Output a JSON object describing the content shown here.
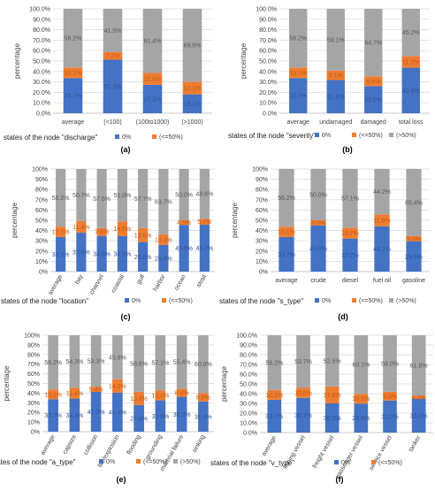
{
  "colors": {
    "zero": "#4472C4",
    "le50": "#ED7D31",
    "gt50": "#A5A5A5",
    "grid": "#D9D9D9"
  },
  "legend": {
    "zero": "0%",
    "le50": "(<=50%)",
    "gt50": "(>50%)"
  },
  "chart_data": [
    {
      "type": "bar",
      "stacked": true,
      "panel_label": "(a)",
      "ylabel": "percentage",
      "xlabel": "states of the node \"discharge\"",
      "ylim": [
        0,
        100
      ],
      "yticks": [
        "0.0%",
        "10.0%",
        "20.0%",
        "30.0%",
        "40.0%",
        "50.0%",
        "60.0%",
        "70.0%",
        "80.0%",
        "90.0%",
        "100.0%"
      ],
      "legend_items": [
        "zero",
        "le50"
      ],
      "rotated": false,
      "categories": [
        "average",
        "(<100)",
        "(100to1000)",
        "(>1000)"
      ],
      "series": [
        {
          "key": "zero",
          "values": [
            33.7,
            51.3,
            27.2,
            18.1
          ],
          "labels": [
            "33.7%",
            "51.3%",
            "27.2%",
            "18.1%"
          ]
        },
        {
          "key": "le50",
          "values": [
            10.1,
            7.2,
            11.4,
            12.1
          ],
          "labels": [
            "10.1%",
            "7.2%",
            "11.4%",
            "12.1%"
          ]
        },
        {
          "key": "gt50",
          "values": [
            56.2,
            41.5,
            61.4,
            69.8
          ],
          "labels": [
            "56.2%",
            "41.5%",
            "61.4%",
            "69.8%"
          ]
        }
      ]
    },
    {
      "type": "bar",
      "stacked": true,
      "panel_label": "(b)",
      "ylabel": "percentage",
      "xlabel": "states of the node \"severity\"",
      "ylim": [
        0,
        100
      ],
      "yticks": [
        "0.0%",
        "10.0%",
        "20.0%",
        "30.0%",
        "40.0%",
        "50.0%",
        "60.0%",
        "70.0%",
        "80.0%",
        "90.0%",
        "100.0%"
      ],
      "legend_items": [
        "zero",
        "le50",
        "gt50"
      ],
      "rotated": false,
      "categories": [
        "average",
        "undamaged",
        "damaged",
        "total loss"
      ],
      "series": [
        {
          "key": "zero",
          "values": [
            33.7,
            31.8,
            25.9,
            43.6
          ],
          "labels": [
            "33.7%",
            "31.8%",
            "25.9%",
            "43.6%"
          ]
        },
        {
          "key": "le50",
          "values": [
            10.1,
            9.1,
            9.4,
            11.2
          ],
          "labels": [
            "10.1%",
            "9.1%",
            "9.4%",
            "11.2%"
          ]
        },
        {
          "key": "gt50",
          "values": [
            56.2,
            59.1,
            64.7,
            45.2
          ],
          "labels": [
            "56.2%",
            "59.1%",
            "64.7%",
            "45.2%"
          ]
        }
      ]
    },
    {
      "type": "bar",
      "stacked": true,
      "panel_label": "(c)",
      "ylabel": "percentage",
      "xlabel": "states of the node \"location\"",
      "ylim": [
        0,
        100
      ],
      "yticks": [
        "0%",
        "10%",
        "20%",
        "30%",
        "40%",
        "50%",
        "60%",
        "70%",
        "80%",
        "90%",
        "100%"
      ],
      "legend_items": [
        "zero",
        "le50"
      ],
      "rotated": true,
      "categories": [
        "average",
        "bay",
        "channel",
        "coastal",
        "gulf",
        "harbor",
        "ocean",
        "strait"
      ],
      "series": [
        {
          "key": "zero",
          "values": [
            33.7,
            37.9,
            34.8,
            34.5,
            28.8,
            25.9,
            45.5,
            45.7
          ],
          "labels": [
            "33.7%",
            "37.9%",
            "34.8%",
            "34.5%",
            "28.8%",
            "25.9%",
            "45.5%",
            "45.7%"
          ]
        },
        {
          "key": "le50",
          "values": [
            10.1,
            11.4,
            7.6,
            14.5,
            13.5,
            10.4,
            4.5,
            5.7
          ],
          "labels": [
            "10.1%",
            "11.4%",
            "7.6%",
            "14.5%",
            "13.5%",
            "10.4%",
            "4.5%",
            "5.7%"
          ]
        },
        {
          "key": "gt50",
          "values": [
            56.2,
            50.7,
            57.6,
            51.0,
            57.7,
            63.7,
            50.0,
            48.6
          ],
          "labels": [
            "56.2%",
            "50.7%",
            "57.6%",
            "51.0%",
            "57.7%",
            "63.7%",
            "50.0%",
            "48.6%"
          ]
        }
      ]
    },
    {
      "type": "bar",
      "stacked": true,
      "panel_label": "(d)",
      "ylabel": "percentage",
      "xlabel": "states of the node \"s_type\"",
      "ylim": [
        0,
        100
      ],
      "yticks": [
        "0%",
        "10%",
        "20%",
        "30%",
        "40%",
        "50%",
        "60%",
        "70%",
        "80%",
        "90%",
        "100%"
      ],
      "legend_items": [
        "zero",
        "le50",
        "gt50"
      ],
      "rotated": false,
      "categories": [
        "average",
        "crude",
        "diesel",
        "fuel oil",
        "gasoline"
      ],
      "series": [
        {
          "key": "zero",
          "values": [
            33.7,
            45.0,
            32.2,
            44.2,
            29.6
          ],
          "labels": [
            "33.7%",
            "45.0%",
            "32.2%",
            "44.2%",
            "29.6%"
          ]
        },
        {
          "key": "le50",
          "values": [
            10.1,
            5.0,
            10.7,
            11.6,
            5.0
          ],
          "labels": [
            "10.1%",
            "5.0%",
            "10.7%",
            "11.6%",
            "5.0%"
          ]
        },
        {
          "key": "gt50",
          "values": [
            56.2,
            50.0,
            57.1,
            44.2,
            65.4
          ],
          "labels": [
            "56.2%",
            "50.0%",
            "57.1%",
            "44.2%",
            "65.4%"
          ]
        }
      ]
    },
    {
      "type": "bar",
      "stacked": true,
      "panel_label": "(e)",
      "ylabel": "percentage",
      "xlabel": "states of the node \"a_type\"",
      "ylim": [
        0,
        100
      ],
      "yticks": [
        "0%",
        "10%",
        "20%",
        "30%",
        "40%",
        "50%",
        "60%",
        "70%",
        "80%",
        "90%",
        "100%"
      ],
      "legend_items": [
        "zero",
        "le50",
        "gt50"
      ],
      "rotated": true,
      "categories": [
        "average",
        "capsize",
        "collision",
        "fire/explosion",
        "flooding",
        "grounding",
        "material failure",
        "sinking"
      ],
      "series": [
        {
          "key": "zero",
          "values": [
            33.7,
            34.3,
            41.3,
            40.4,
            27.6,
            32.5,
            36.2,
            31.4
          ],
          "labels": [
            "33.7%",
            "34.3%",
            "41.3%",
            "40.4%",
            "27.6%",
            "32.5%",
            "36.2%",
            "31.4%"
          ]
        },
        {
          "key": "le50",
          "values": [
            10.1,
            11.4,
            5.4,
            14.0,
            13.8,
            10.4,
            8.4,
            8.6
          ],
          "labels": [
            "10.1%",
            "11.4%",
            "5.4%",
            "14.0%",
            "13.8%",
            "10.4%",
            "8.4%",
            "8.6%"
          ]
        },
        {
          "key": "gt50",
          "values": [
            56.2,
            54.3,
            53.3,
            45.6,
            58.6,
            57.1,
            55.4,
            60.0
          ],
          "labels": [
            "56.2%",
            "54.3%",
            "53.3%",
            "45.6%",
            "58.6%",
            "57.1%",
            "55.4%",
            "60.0%"
          ]
        }
      ]
    },
    {
      "type": "bar",
      "stacked": true,
      "panel_label": "(f)",
      "ylabel": "percentage",
      "xlabel": "states of the node \"v_type\"",
      "ylim": [
        0,
        100
      ],
      "yticks": [
        "0.0%",
        "10.0%",
        "20.0%",
        "30.0%",
        "40.0%",
        "50.0%",
        "60.0%",
        "70.0%",
        "80.0%",
        "90.0%",
        "100.0%"
      ],
      "legend_items": [
        "zero",
        "le50"
      ],
      "rotated": true,
      "categories": [
        "average",
        "fishing vessel",
        "freight vessel",
        "passenger vessel",
        "service vessel",
        "tanker"
      ],
      "series": [
        {
          "key": "zero",
          "values": [
            33.7,
            35.7,
            30.0,
            29.8,
            33.0,
            34.9
          ],
          "labels": [
            "33.7%",
            "35.7%",
            "30.0%",
            "29.8%",
            "33.0%",
            "34.9%"
          ]
        },
        {
          "key": "le50",
          "values": [
            10.1,
            10.6,
            17.5,
            10.1,
            9.0,
            3.2
          ],
          "labels": [
            "10.1%",
            "10.6%",
            "17.5%",
            "10.1%",
            "9.0%",
            "3.2%"
          ]
        },
        {
          "key": "gt50",
          "values": [
            56.2,
            53.7,
            52.5,
            60.1,
            58.0,
            61.9
          ],
          "labels": [
            "56.2%",
            "53.7%",
            "52.5%",
            "60.1%",
            "58.0%",
            "61.9%"
          ]
        }
      ]
    }
  ]
}
